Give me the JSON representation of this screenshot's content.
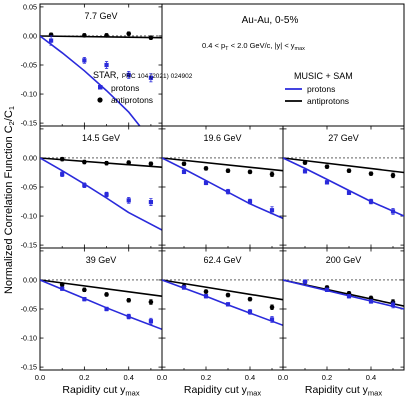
{
  "figure": {
    "ylabel_main": "Normalized Correlation Function C",
    "ylabel_sub_n": "2",
    "ylabel_slash": "/C",
    "ylabel_sub_d": "1",
    "xlabel_main": "Rapidity cut y",
    "xlabel_sub": "max",
    "system_label": "Au-Au, 0-5%",
    "cut_label": "0.4 < p",
    "cut_label_sub": "T",
    "cut_label_rest": " < 2.0 GeV/c, |y| < y",
    "cut_label_sub2": "max",
    "legend_star_title": "STAR,",
    "legend_star_ref": "PRC 104 (2021) 024902",
    "legend_protons": "protons",
    "legend_antiprotons": "antiprotons",
    "legend_model_title": "MUSIC + SAM",
    "legend_model_protons": "protons",
    "legend_model_antiprotons": "antiprotons",
    "colors": {
      "protons": "#2a2adb",
      "antiprotons": "#000000"
    }
  },
  "chart_data": {
    "type": "scatter",
    "xlim": [
      0,
      0.55
    ],
    "ylim": [
      -0.155,
      0.055
    ],
    "x_ticks": [
      0.0,
      0.2,
      0.4
    ],
    "x_tick_labels": [
      "0.0",
      "0.2",
      "0.4"
    ],
    "y_ticks": [
      0.05,
      0.0,
      -0.05,
      -0.1,
      -0.15
    ],
    "y_tick_labels": [
      "0.05",
      "0.00",
      "-0.05",
      "-0.10",
      "-0.15"
    ],
    "panels": [
      {
        "label": "7.7 GeV",
        "protons": [
          [
            0.05,
            -0.008,
            0.008
          ],
          [
            0.2,
            -0.042,
            0.005
          ],
          [
            0.3,
            -0.05,
            0.006
          ],
          [
            0.4,
            -0.067,
            0.006
          ],
          [
            0.5,
            -0.072,
            0.007
          ]
        ],
        "antiprotons": [
          [
            0.05,
            0.002,
            0.003
          ],
          [
            0.2,
            0.001,
            0.003
          ],
          [
            0.3,
            0.001,
            0.003
          ],
          [
            0.4,
            0.004,
            0.003
          ],
          [
            0.5,
            -0.003,
            0.003
          ]
        ],
        "model_protons": [
          [
            0.0,
            0.0
          ],
          [
            0.1,
            -0.029
          ],
          [
            0.2,
            -0.06
          ],
          [
            0.3,
            -0.094
          ],
          [
            0.4,
            -0.131
          ],
          [
            0.45,
            -0.155
          ]
        ],
        "model_antiprotons": [
          [
            0.0,
            0.0
          ],
          [
            0.55,
            -0.003
          ]
        ]
      },
      {
        "label": "14.5 GeV",
        "protons": [
          [
            0.1,
            -0.028,
            0.004
          ],
          [
            0.2,
            -0.047,
            0.004
          ],
          [
            0.3,
            -0.063,
            0.004
          ],
          [
            0.4,
            -0.073,
            0.005
          ],
          [
            0.5,
            -0.076,
            0.006
          ]
        ],
        "antiprotons": [
          [
            0.1,
            -0.002,
            0.003
          ],
          [
            0.2,
            -0.007,
            0.003
          ],
          [
            0.3,
            -0.009,
            0.003
          ],
          [
            0.4,
            -0.008,
            0.003
          ],
          [
            0.5,
            -0.01,
            0.003
          ]
        ],
        "model_protons": [
          [
            0.0,
            0.0
          ],
          [
            0.1,
            -0.022
          ],
          [
            0.2,
            -0.045
          ],
          [
            0.3,
            -0.069
          ],
          [
            0.4,
            -0.094
          ],
          [
            0.55,
            -0.124
          ]
        ],
        "model_antiprotons": [
          [
            0.0,
            0.0
          ],
          [
            0.55,
            -0.016
          ]
        ]
      },
      {
        "label": "19.6 GeV",
        "protons": [
          [
            0.1,
            -0.024,
            0.003
          ],
          [
            0.2,
            -0.043,
            0.003
          ],
          [
            0.3,
            -0.058,
            0.004
          ],
          [
            0.4,
            -0.075,
            0.004
          ],
          [
            0.5,
            -0.09,
            0.006
          ]
        ],
        "antiprotons": [
          [
            0.1,
            -0.01,
            0.003
          ],
          [
            0.2,
            -0.018,
            0.003
          ],
          [
            0.3,
            -0.022,
            0.003
          ],
          [
            0.4,
            -0.024,
            0.003
          ],
          [
            0.5,
            -0.028,
            0.004
          ]
        ],
        "model_protons": [
          [
            0.0,
            0.0
          ],
          [
            0.1,
            -0.019
          ],
          [
            0.2,
            -0.039
          ],
          [
            0.3,
            -0.059
          ],
          [
            0.4,
            -0.079
          ],
          [
            0.55,
            -0.104
          ]
        ],
        "model_antiprotons": [
          [
            0.0,
            0.0
          ],
          [
            0.55,
            -0.022
          ]
        ]
      },
      {
        "label": "27 GeV",
        "protons": [
          [
            0.1,
            -0.023,
            0.003
          ],
          [
            0.2,
            -0.042,
            0.003
          ],
          [
            0.3,
            -0.06,
            0.003
          ],
          [
            0.4,
            -0.075,
            0.004
          ],
          [
            0.5,
            -0.092,
            0.005
          ]
        ],
        "antiprotons": [
          [
            0.1,
            -0.008,
            0.003
          ],
          [
            0.2,
            -0.015,
            0.003
          ],
          [
            0.3,
            -0.022,
            0.003
          ],
          [
            0.4,
            -0.027,
            0.003
          ],
          [
            0.5,
            -0.03,
            0.004
          ]
        ],
        "model_protons": [
          [
            0.0,
            0.0
          ],
          [
            0.1,
            -0.018
          ],
          [
            0.2,
            -0.037
          ],
          [
            0.3,
            -0.056
          ],
          [
            0.4,
            -0.075
          ],
          [
            0.55,
            -0.1
          ]
        ],
        "model_antiprotons": [
          [
            0.0,
            0.0
          ],
          [
            0.55,
            -0.025
          ]
        ]
      },
      {
        "label": "39 GeV",
        "protons": [
          [
            0.1,
            -0.015,
            0.003
          ],
          [
            0.2,
            -0.033,
            0.003
          ],
          [
            0.3,
            -0.05,
            0.003
          ],
          [
            0.4,
            -0.063,
            0.004
          ],
          [
            0.5,
            -0.071,
            0.005
          ]
        ],
        "antiprotons": [
          [
            0.1,
            -0.008,
            0.003
          ],
          [
            0.2,
            -0.017,
            0.003
          ],
          [
            0.3,
            -0.025,
            0.003
          ],
          [
            0.4,
            -0.035,
            0.003
          ],
          [
            0.5,
            -0.038,
            0.004
          ]
        ],
        "model_protons": [
          [
            0.0,
            0.0
          ],
          [
            0.1,
            -0.016
          ],
          [
            0.2,
            -0.032
          ],
          [
            0.3,
            -0.048
          ],
          [
            0.4,
            -0.063
          ],
          [
            0.55,
            -0.085
          ]
        ],
        "model_antiprotons": [
          [
            0.0,
            0.0
          ],
          [
            0.55,
            -0.028
          ]
        ]
      },
      {
        "label": "62.4 GeV",
        "protons": [
          [
            0.1,
            -0.013,
            0.003
          ],
          [
            0.2,
            -0.028,
            0.003
          ],
          [
            0.3,
            -0.042,
            0.003
          ],
          [
            0.4,
            -0.055,
            0.004
          ],
          [
            0.5,
            -0.068,
            0.005
          ]
        ],
        "antiprotons": [
          [
            0.1,
            -0.011,
            0.003
          ],
          [
            0.2,
            -0.02,
            0.003
          ],
          [
            0.3,
            -0.026,
            0.003
          ],
          [
            0.4,
            -0.033,
            0.003
          ],
          [
            0.5,
            -0.047,
            0.004
          ]
        ],
        "model_protons": [
          [
            0.0,
            0.0
          ],
          [
            0.1,
            -0.014
          ],
          [
            0.2,
            -0.028
          ],
          [
            0.3,
            -0.043
          ],
          [
            0.4,
            -0.057
          ],
          [
            0.55,
            -0.078
          ]
        ],
        "model_antiprotons": [
          [
            0.0,
            0.0
          ],
          [
            0.55,
            -0.034
          ]
        ]
      },
      {
        "label": "200 GeV",
        "protons": [
          [
            0.1,
            -0.003,
            0.003
          ],
          [
            0.2,
            -0.017,
            0.003
          ],
          [
            0.3,
            -0.028,
            0.003
          ],
          [
            0.4,
            -0.037,
            0.003
          ],
          [
            0.5,
            -0.043,
            0.005
          ]
        ],
        "antiprotons": [
          [
            0.1,
            -0.003,
            0.003
          ],
          [
            0.2,
            -0.013,
            0.003
          ],
          [
            0.3,
            -0.023,
            0.003
          ],
          [
            0.4,
            -0.031,
            0.003
          ],
          [
            0.5,
            -0.038,
            0.004
          ]
        ],
        "model_protons": [
          [
            0.0,
            0.0
          ],
          [
            0.55,
            -0.05
          ]
        ],
        "model_antiprotons": [
          [
            0.0,
            0.0
          ],
          [
            0.55,
            -0.045
          ]
        ]
      }
    ]
  }
}
